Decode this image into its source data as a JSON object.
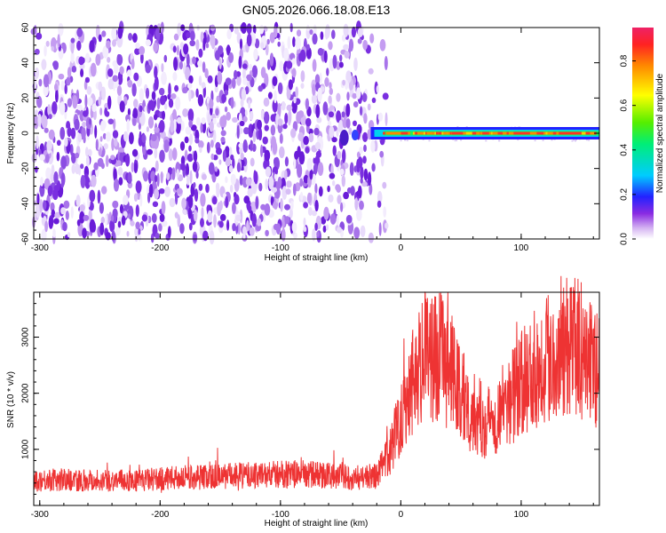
{
  "chart_data": [
    {
      "type": "heatmap",
      "title": "GN05.2026.066.18.08.E13",
      "xlabel": "Height of straight line (km)",
      "ylabel": "Frequency (Hz)",
      "xlim": [
        -305,
        165
      ],
      "ylim": [
        -60,
        60
      ],
      "xticks": [
        -300,
        -200,
        -100,
        0,
        100
      ],
      "yticks": [
        -60,
        -40,
        -20,
        0,
        20,
        40,
        60
      ],
      "colorbar": {
        "label": "Normalized spectral amplitude",
        "range": [
          0,
          0.95
        ],
        "ticks": [
          0.0,
          0.2,
          0.4,
          0.6,
          0.8
        ]
      },
      "features": {
        "noise_region_km": [
          -305,
          -25
        ],
        "signal_start_km": -25,
        "signal_end_km": 165,
        "signal_frequency_hz": 0,
        "signal_peak_amplitude": 0.92
      }
    },
    {
      "type": "line",
      "xlabel": "Height of straight line (km)",
      "ylabel": "SNR (10 * v/v)",
      "xlim": [
        -305,
        165
      ],
      "ylim": [
        0,
        3800
      ],
      "xticks": [
        -300,
        -200,
        -100,
        0,
        100
      ],
      "yticks": [
        1000,
        2000,
        3000
      ],
      "series": [
        {
          "name": "SNR",
          "color": "#ee3333",
          "x": [
            -305,
            -280,
            -250,
            -220,
            -200,
            -180,
            -150,
            -120,
            -100,
            -80,
            -60,
            -40,
            -20,
            -10,
            0,
            10,
            20,
            30,
            40,
            50,
            60,
            70,
            80,
            90,
            100,
            110,
            120,
            130,
            140,
            150,
            160,
            165
          ],
          "y": [
            450,
            460,
            450,
            440,
            470,
            500,
            520,
            540,
            560,
            560,
            540,
            500,
            520,
            900,
            1600,
            2300,
            2650,
            2700,
            2450,
            2000,
            1650,
            1500,
            1600,
            1900,
            2150,
            2400,
            2650,
            2800,
            2900,
            2750,
            2500,
            2400
          ]
        }
      ]
    }
  ]
}
